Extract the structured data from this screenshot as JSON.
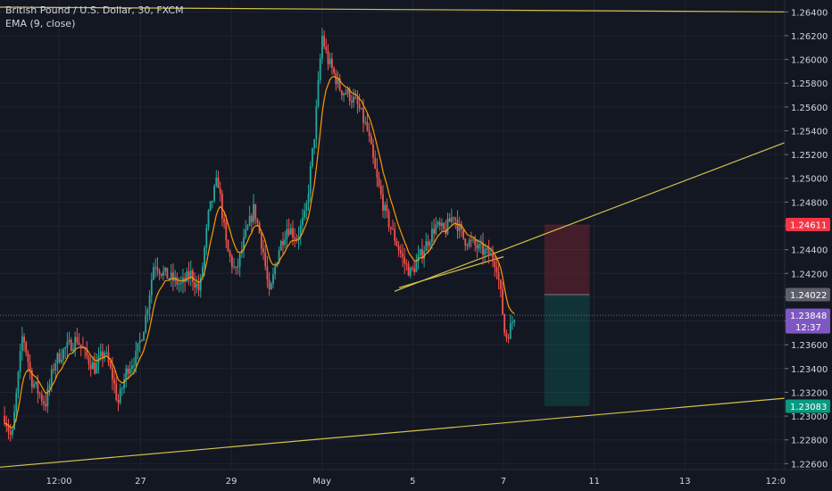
{
  "chart_data": {
    "type": "candlestick",
    "title": "British Pound / U.S. Dollar, 30, FXCM",
    "indicator": "EMA (9, close)",
    "ylim": [
      1.2255,
      1.265
    ],
    "y_ticks": [
      1.264,
      1.262,
      1.26,
      1.258,
      1.256,
      1.254,
      1.252,
      1.25,
      1.248,
      1.246,
      1.244,
      1.242,
      1.24,
      1.238,
      1.236,
      1.234,
      1.232,
      1.23,
      1.228,
      1.226
    ],
    "y_tick_labels": [
      "1.26400",
      "1.26200",
      "1.26000",
      "1.25800",
      "1.25600",
      "1.25400",
      "1.25200",
      "1.25000",
      "1.24800",
      "1.24600",
      "1.24400",
      "1.24200",
      "1.24000",
      "1.23800",
      "1.23600",
      "1.23400",
      "1.23200",
      "1.23000",
      "1.22800",
      "1.22600"
    ],
    "x_ticks": [
      {
        "t": 0.6,
        "label": "12:00"
      },
      {
        "t": 1.5,
        "label": "27"
      },
      {
        "t": 2.5,
        "label": "29"
      },
      {
        "t": 3.5,
        "label": "May"
      },
      {
        "t": 4.5,
        "label": "5"
      },
      {
        "t": 5.5,
        "label": "7"
      },
      {
        "t": 6.5,
        "label": "11"
      },
      {
        "t": 7.5,
        "label": "13"
      },
      {
        "t": 8.5,
        "label": "12:0"
      }
    ],
    "xlim": [
      -0.05,
      8.6
    ],
    "price_path": [
      [
        0.0,
        1.23
      ],
      [
        0.08,
        1.228
      ],
      [
        0.2,
        1.237
      ],
      [
        0.3,
        1.233
      ],
      [
        0.45,
        1.231
      ],
      [
        0.55,
        1.2345
      ],
      [
        0.65,
        1.2355
      ],
      [
        0.8,
        1.2365
      ],
      [
        0.9,
        1.235
      ],
      [
        1.0,
        1.234
      ],
      [
        1.1,
        1.2355
      ],
      [
        1.2,
        1.233
      ],
      [
        1.25,
        1.231
      ],
      [
        1.35,
        1.234
      ],
      [
        1.45,
        1.235
      ],
      [
        1.55,
        1.238
      ],
      [
        1.65,
        1.243
      ],
      [
        1.75,
        1.242
      ],
      [
        1.85,
        1.2415
      ],
      [
        1.95,
        1.241
      ],
      [
        2.05,
        1.242
      ],
      [
        2.15,
        1.2405
      ],
      [
        2.25,
        1.247
      ],
      [
        2.35,
        1.25
      ],
      [
        2.45,
        1.244
      ],
      [
        2.55,
        1.242
      ],
      [
        2.65,
        1.245
      ],
      [
        2.75,
        1.2475
      ],
      [
        2.85,
        1.244
      ],
      [
        2.92,
        1.24
      ],
      [
        3.02,
        1.244
      ],
      [
        3.12,
        1.246
      ],
      [
        3.22,
        1.245
      ],
      [
        3.32,
        1.247
      ],
      [
        3.42,
        1.254
      ],
      [
        3.5,
        1.262
      ],
      [
        3.56,
        1.26
      ],
      [
        3.62,
        1.259
      ],
      [
        3.7,
        1.2575
      ],
      [
        3.8,
        1.257
      ],
      [
        3.9,
        1.256
      ],
      [
        4.0,
        1.254
      ],
      [
        4.1,
        1.25
      ],
      [
        4.2,
        1.247
      ],
      [
        4.3,
        1.245
      ],
      [
        4.4,
        1.243
      ],
      [
        4.48,
        1.242
      ],
      [
        4.55,
        1.243
      ],
      [
        4.65,
        1.2445
      ],
      [
        4.75,
        1.246
      ],
      [
        4.85,
        1.2455
      ],
      [
        4.95,
        1.247
      ],
      [
        5.05,
        1.245
      ],
      [
        5.15,
        1.2445
      ],
      [
        5.25,
        1.244
      ],
      [
        5.35,
        1.2435
      ],
      [
        5.42,
        1.243
      ],
      [
        5.48,
        1.2395
      ],
      [
        5.52,
        1.2365
      ],
      [
        5.58,
        1.2375
      ],
      [
        5.62,
        1.2385
      ]
    ],
    "trendlines": [
      {
        "name": "upper-resistance",
        "p1": [
          -0.05,
          1.2644
        ],
        "p2": [
          8.6,
          1.264
        ]
      },
      {
        "name": "rising-line",
        "p1": [
          4.3,
          1.2405
        ],
        "p2": [
          8.6,
          1.253
        ]
      },
      {
        "name": "neckline",
        "p1": [
          4.35,
          1.2408
        ],
        "p2": [
          5.5,
          1.2434
        ]
      },
      {
        "name": "lower-support",
        "p1": [
          -0.05,
          1.2257
        ],
        "p2": [
          8.6,
          1.2315
        ]
      }
    ],
    "position_tool": {
      "x_from": 5.95,
      "x_to": 6.45,
      "stop": 1.24611,
      "entry": 1.24022,
      "target": 1.23083
    },
    "price_labels": [
      {
        "value": 1.24611,
        "text": "1.24611",
        "color": "#f23645"
      },
      {
        "value": 1.24022,
        "text": "1.24022",
        "color": "#5d606b"
      },
      {
        "value": 1.23848,
        "text": "1.23848",
        "color": "#7e57c2",
        "sub": "12:37"
      },
      {
        "value": 1.23083,
        "text": "1.23083",
        "color": "#089981"
      }
    ],
    "current_price": 1.23848,
    "colors": {
      "up": "#26a69a",
      "down": "#ef5350",
      "ema": "#ff9800",
      "trendline": "#d4c24a",
      "background": "#131722",
      "grid": "#1f2330"
    }
  }
}
